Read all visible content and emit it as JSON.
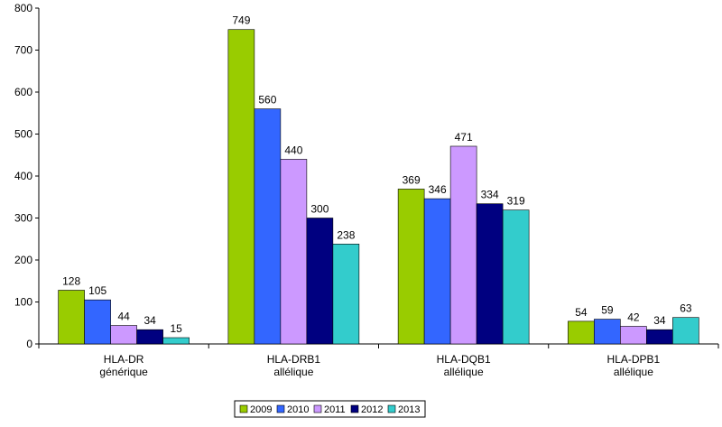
{
  "chart_data": {
    "type": "bar",
    "categories": [
      [
        "HLA-DR",
        "générique"
      ],
      [
        "HLA-DRB1",
        "allélique"
      ],
      [
        "HLA-DQB1",
        "allélique"
      ],
      [
        "HLA-DPB1",
        "allélique"
      ]
    ],
    "series": [
      {
        "name": "2009",
        "color": "#99cc00",
        "values": [
          128,
          749,
          369,
          54
        ]
      },
      {
        "name": "2010",
        "color": "#3366ff",
        "values": [
          105,
          560,
          346,
          59
        ]
      },
      {
        "name": "2011",
        "color": "#cc99ff",
        "values": [
          44,
          440,
          471,
          42
        ]
      },
      {
        "name": "2012",
        "color": "#000080",
        "values": [
          34,
          300,
          334,
          34
        ]
      },
      {
        "name": "2013",
        "color": "#33cccc",
        "values": [
          15,
          238,
          319,
          63
        ]
      }
    ],
    "ylim": [
      0,
      800
    ],
    "yticks": [
      0,
      100,
      200,
      300,
      400,
      500,
      600,
      700,
      800
    ],
    "grid": false,
    "legend_position": "bottom-center",
    "data_labels": true
  }
}
